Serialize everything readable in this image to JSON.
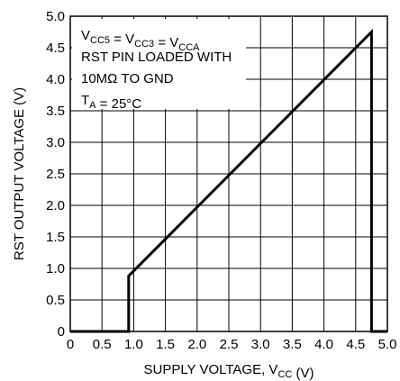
{
  "chart_data": {
    "type": "line",
    "xlabel": {
      "main": "SUPPLY VOLTAGE, V",
      "sub": "CC",
      "unit": " (V)"
    },
    "ylabel": "RST OUTPUT VOLTAGE (V)",
    "xlim": [
      0,
      5.0
    ],
    "ylim": [
      0,
      5.0
    ],
    "x_ticks": [
      "0",
      "0.5",
      "1.0",
      "1.5",
      "2.0",
      "2.5",
      "3.0",
      "3.5",
      "4.0",
      "4.5",
      "5.0"
    ],
    "y_ticks": [
      "0",
      "0.5",
      "1.0",
      "1.5",
      "2.0",
      "2.5",
      "3.0",
      "3.5",
      "4.0",
      "4.5",
      "5.0"
    ],
    "grid": true,
    "series": [
      {
        "points": [
          {
            "x": 0.0,
            "y": 0.0
          },
          {
            "x": 0.92,
            "y": 0.0
          },
          {
            "x": 0.92,
            "y": 0.88
          },
          {
            "x": 4.75,
            "y": 4.75
          },
          {
            "x": 4.75,
            "y": 0.0
          },
          {
            "x": 5.0,
            "y": 0.0
          }
        ]
      }
    ],
    "annotation": {
      "line1": [
        {
          "t": "V",
          "sub": false
        },
        {
          "t": "CC5",
          "sub": true
        },
        {
          "t": " = V",
          "sub": false
        },
        {
          "t": "CC3",
          "sub": true
        },
        {
          "t": " = V",
          "sub": false
        },
        {
          "t": "CCA",
          "sub": true
        }
      ],
      "line2": "RST PIN LOADED WITH",
      "line3": "10MΩ TO GND",
      "line4": [
        {
          "t": "T",
          "sub": false
        },
        {
          "t": "A",
          "sub": true
        },
        {
          "t": " = 25°C",
          "sub": false
        }
      ]
    }
  }
}
